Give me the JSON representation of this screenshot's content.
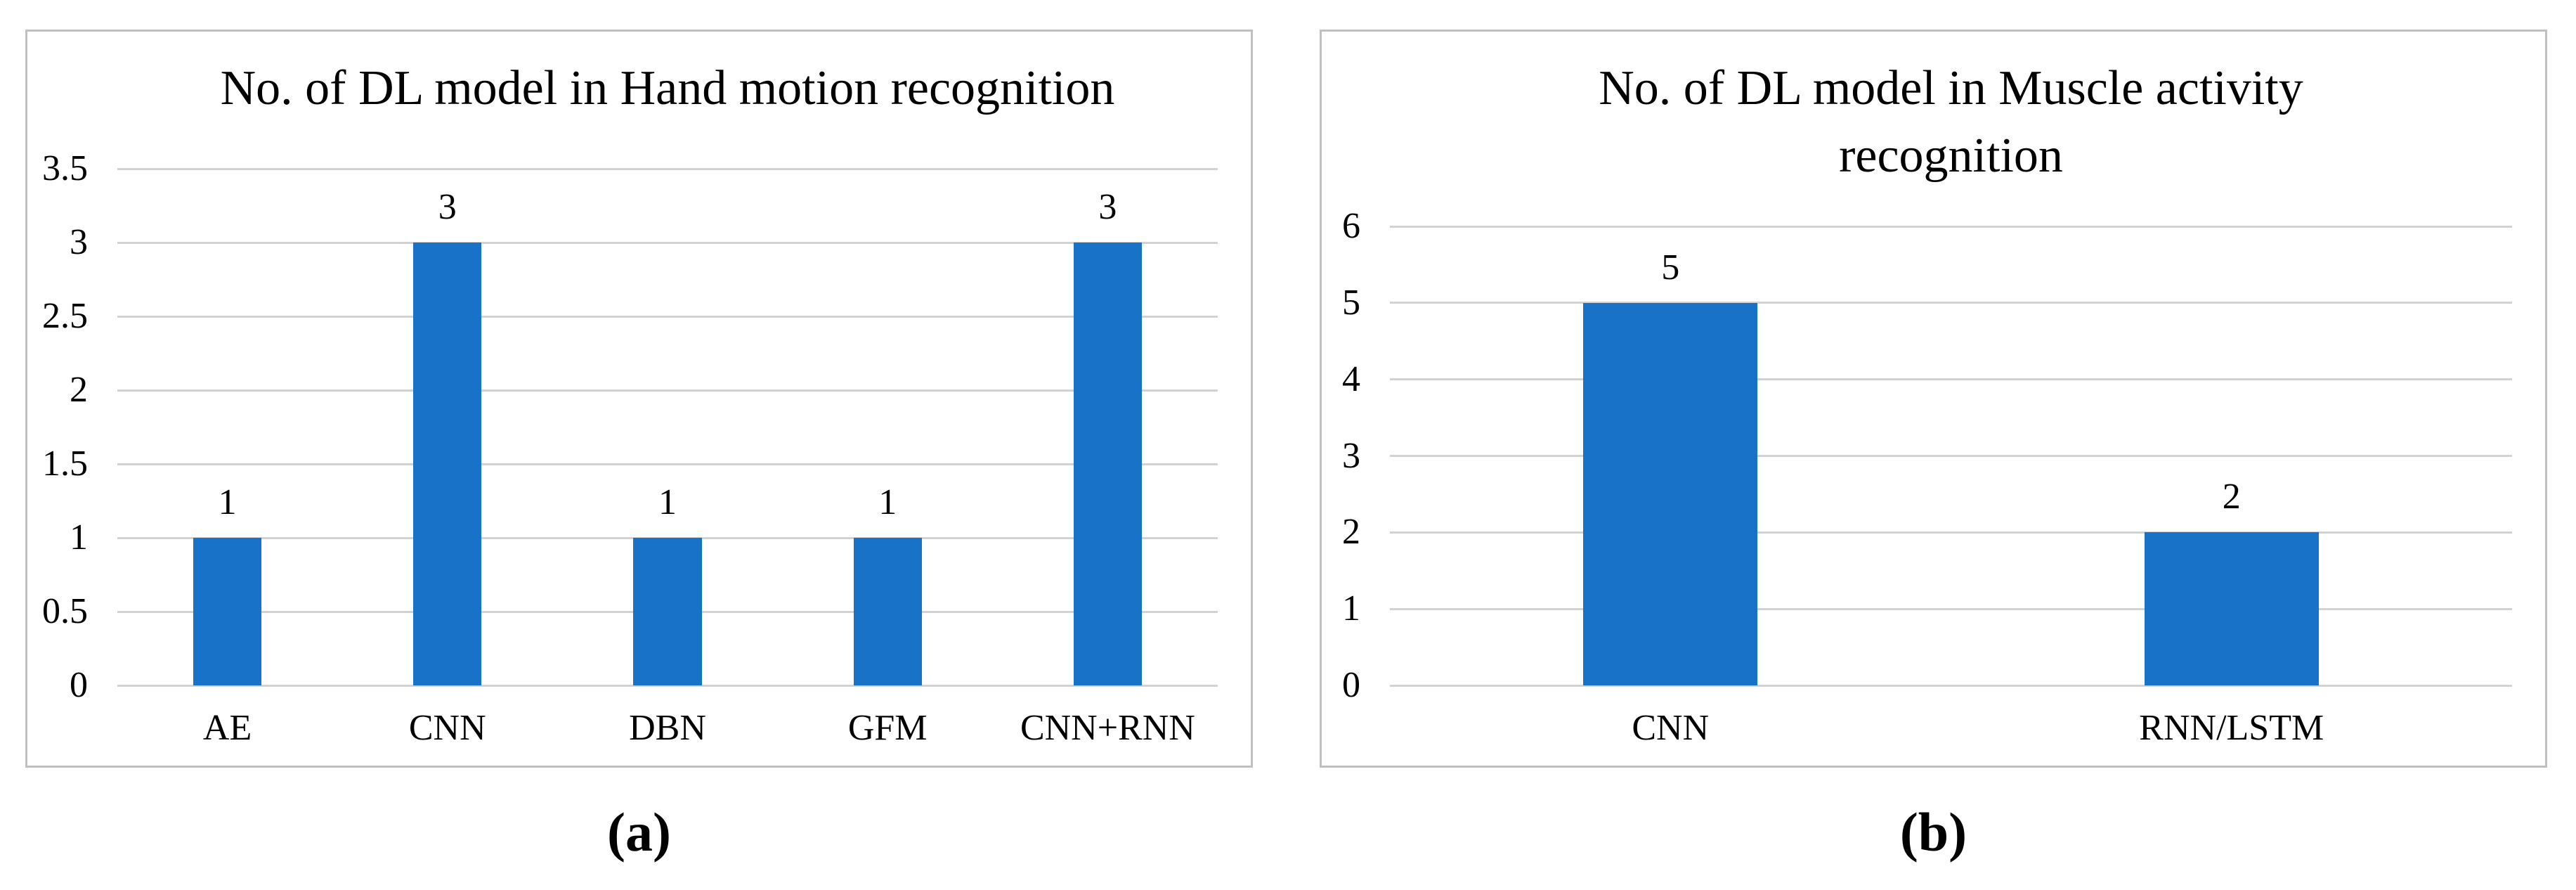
{
  "figure": {
    "captions": [
      "(a)",
      "(b)"
    ]
  },
  "chart_data": [
    {
      "type": "bar",
      "title": "No. of DL model in Hand motion recognition",
      "title_lines": [
        "No. of DL model in Hand motion recognition"
      ],
      "categories": [
        "AE",
        "CNN",
        "DBN",
        "GFM",
        "CNN+RNN"
      ],
      "values": [
        1,
        3,
        1,
        1,
        3
      ],
      "value_labels": [
        "1",
        "3",
        "1",
        "1",
        "3"
      ],
      "xlabel": "",
      "ylabel": "",
      "ylim": [
        0,
        3.5
      ],
      "yticks": [
        0,
        0.5,
        1,
        1.5,
        2,
        2.5,
        3,
        3.5
      ],
      "ytick_labels": [
        "0",
        "0.5",
        "1",
        "1.5",
        "2",
        "2.5",
        "3",
        "3.5"
      ],
      "grid": true,
      "legend": "none",
      "bar_color": "#1772c8",
      "gridline_color": "#d2d2d2"
    },
    {
      "type": "bar",
      "title": "No. of DL model in Muscle activity recognition",
      "title_lines": [
        "No. of DL model in Muscle activity",
        "recognition"
      ],
      "categories": [
        "CNN",
        "RNN/LSTM"
      ],
      "values": [
        5,
        2
      ],
      "value_labels": [
        "5",
        "2"
      ],
      "xlabel": "",
      "ylabel": "",
      "ylim": [
        0,
        6
      ],
      "yticks": [
        0,
        1,
        2,
        3,
        4,
        5,
        6
      ],
      "ytick_labels": [
        "0",
        "1",
        "2",
        "3",
        "4",
        "5",
        "6"
      ],
      "grid": true,
      "legend": "none",
      "bar_color": "#1772c8",
      "gridline_color": "#d2d2d2"
    }
  ]
}
